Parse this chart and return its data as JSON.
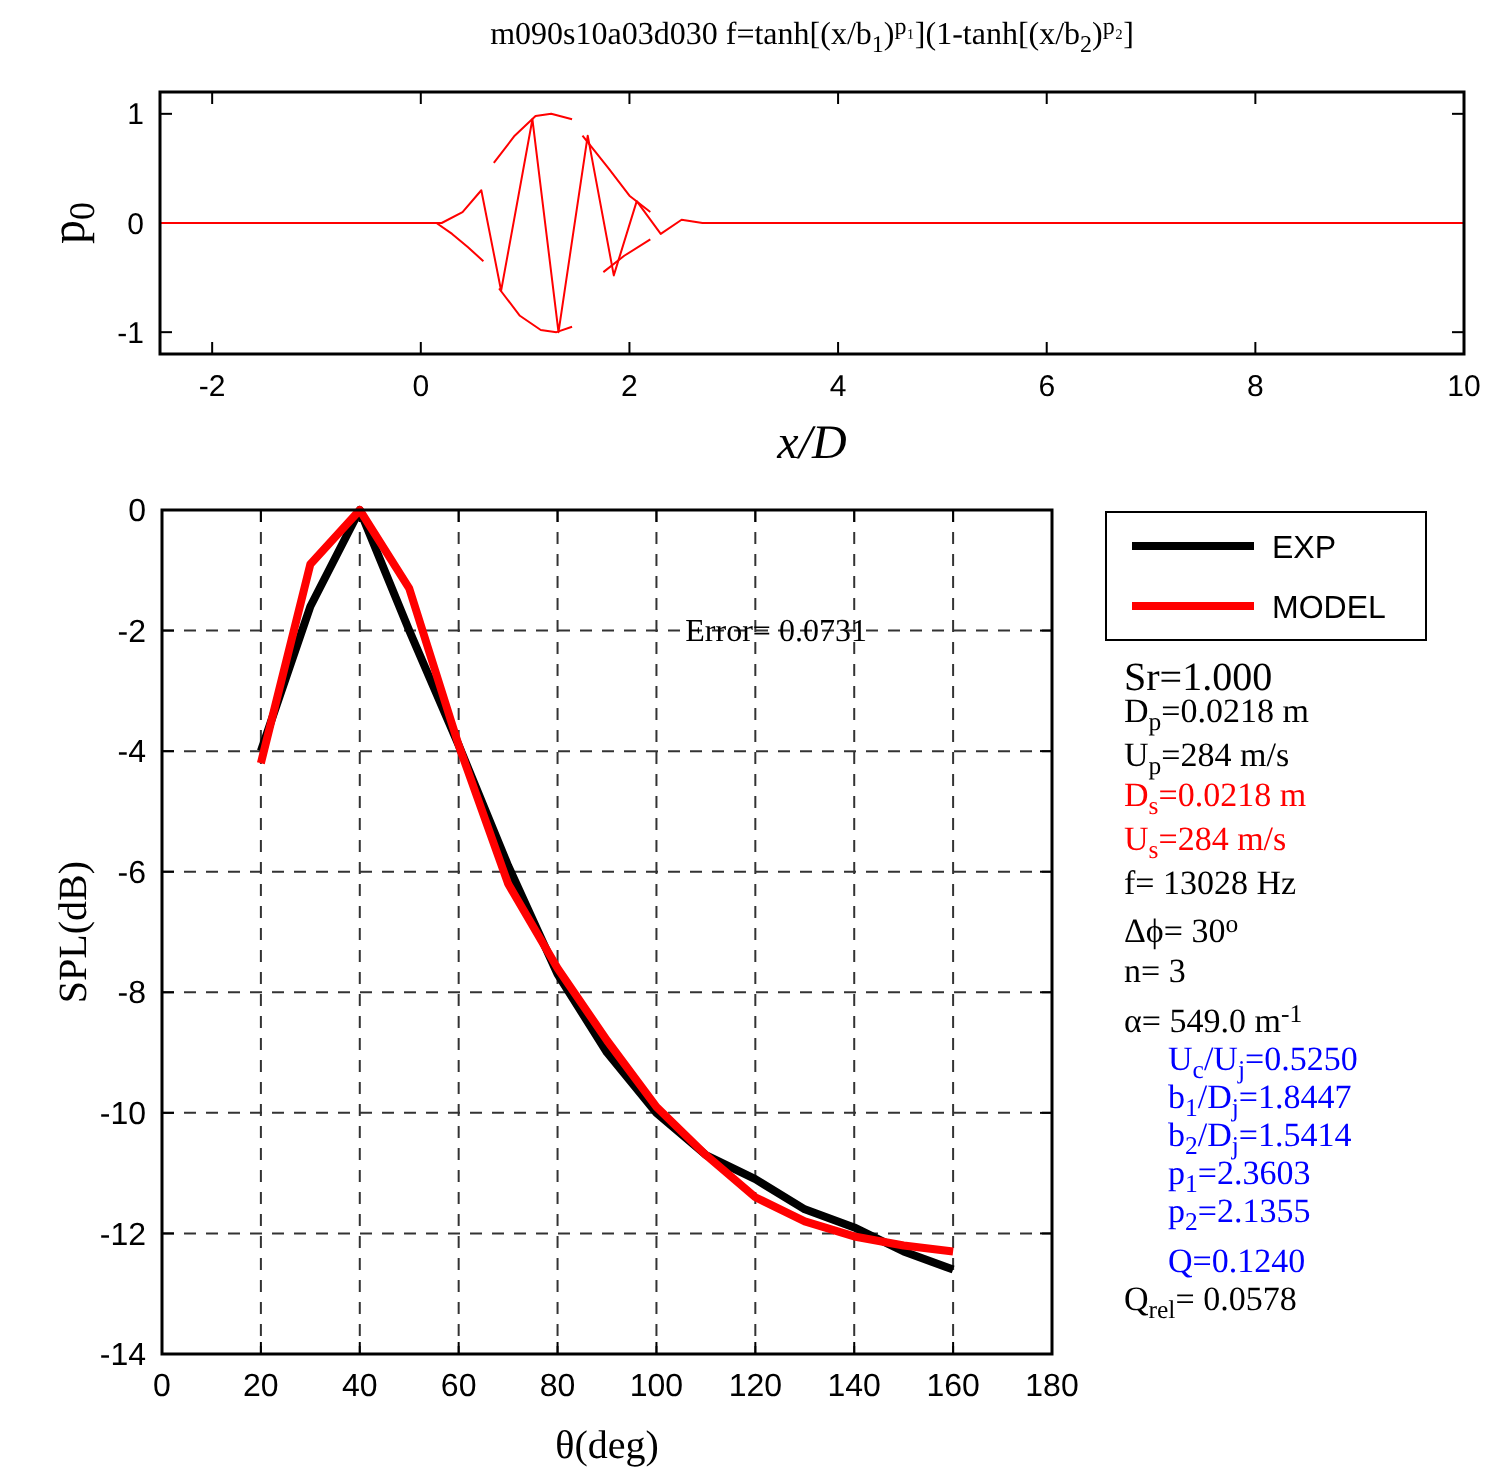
{
  "chart_data": [
    {
      "type": "line",
      "title": "m090s10a03d030  f=tanh[(x/b$_{1}$)$^{p₁}$](1-tanh[(x/b$_{2}$)$^{p₂}$]",
      "xlabel": "x/D",
      "ylabel": "p$_{0}$",
      "xlim": [
        -2.5,
        10
      ],
      "ylim": [
        -1.2,
        1.2
      ],
      "xticks": [
        -2,
        0,
        2,
        4,
        6,
        8,
        10
      ],
      "yticks": [
        -1,
        0,
        1
      ],
      "grid": false,
      "legend": false,
      "series": [
        {
          "color": "#ff0000",
          "x": [
            -2.5,
            0,
            0.2,
            0.4,
            0.58,
            0.77,
            1.07,
            1.32,
            1.6,
            1.85,
            2.07,
            2.3,
            2.5,
            2.7,
            10
          ],
          "values": [
            0,
            0,
            0,
            0.1,
            0.3,
            -0.62,
            0.95,
            -1.0,
            0.8,
            -0.48,
            0.2,
            -0.1,
            0.03,
            0,
            0
          ]
        },
        {
          "color": "#ff0000",
          "x": [
            0.7,
            0.9,
            1.1,
            1.25,
            1.45
          ],
          "values": [
            0.55,
            0.8,
            0.98,
            1.0,
            0.95
          ]
        },
        {
          "color": "#ff0000",
          "x": [
            1.55,
            1.8,
            2.0,
            2.2
          ],
          "values": [
            0.8,
            0.5,
            0.25,
            0.1
          ]
        },
        {
          "color": "#ff0000",
          "x": [
            0.15,
            0.3,
            0.45,
            0.6
          ],
          "values": [
            0,
            -0.1,
            -0.22,
            -0.35
          ]
        },
        {
          "color": "#ff0000",
          "x": [
            0.75,
            0.95,
            1.15,
            1.3,
            1.45
          ],
          "values": [
            -0.6,
            -0.85,
            -0.98,
            -1.0,
            -0.95
          ]
        },
        {
          "color": "#ff0000",
          "x": [
            1.75,
            1.95,
            2.2
          ],
          "values": [
            -0.45,
            -0.3,
            -0.15
          ]
        }
      ]
    },
    {
      "type": "line",
      "xlabel": "θ(deg)",
      "ylabel": "SPL(dB)",
      "xlim": [
        0,
        180
      ],
      "ylim": [
        -14,
        0
      ],
      "xticks": [
        0,
        20,
        40,
        60,
        80,
        100,
        120,
        140,
        160,
        180
      ],
      "yticks": [
        -14,
        -12,
        -10,
        -8,
        -6,
        -4,
        -2,
        0
      ],
      "grid": true,
      "legend": "right",
      "annotations": [
        "Error= 0.0731"
      ],
      "series": [
        {
          "name": "EXP",
          "color": "#000000",
          "x": [
            20,
            30,
            40,
            50,
            60,
            70,
            80,
            90,
            100,
            110,
            120,
            130,
            140,
            150,
            160
          ],
          "values": [
            -4.0,
            -1.6,
            0,
            -2.0,
            -3.9,
            -5.9,
            -7.7,
            -9.0,
            -10.0,
            -10.7,
            -11.1,
            -11.6,
            -11.9,
            -12.3,
            -12.6
          ]
        },
        {
          "name": "MODEL",
          "color": "#ff0000",
          "x": [
            20,
            30,
            40,
            50,
            60,
            70,
            80,
            90,
            100,
            110,
            120,
            130,
            140,
            150,
            160
          ],
          "values": [
            -4.2,
            -0.9,
            0,
            -1.3,
            -3.9,
            -6.2,
            -7.6,
            -8.8,
            -9.9,
            -10.7,
            -11.4,
            -11.8,
            -12.05,
            -12.2,
            -12.3
          ]
        }
      ]
    },
    {
      "type": "other",
      "annotations": [
        "Sr=1.000",
        "D$_{p}$=0.0218 m",
        "U$_{p}$=284 m/s",
        "D$_{s}$=0.0218 m",
        "U$_{s}$=284 m/s",
        "f= 13028 Hz",
        "Δϕ= 30$^{o}$",
        "n= 3",
        "α= 549.0 m$^{-1}$",
        "U$_{c}$/U$_{j}$=0.5250",
        "b$_{1}$/D$_{j}$=1.8447",
        "b$_{2}$/D$_{j}$=1.5414",
        "p$_{1}$=2.3603",
        "p$_{2}$=2.1355",
        "Q=0.1240",
        "Q$_{rel}$= 0.0578"
      ],
      "colors": [
        "#000000",
        "#000000",
        "#000000",
        "#ff0000",
        "#ff0000",
        "#000000",
        "#000000",
        "#000000",
        "#000000",
        "#0000ff",
        "#0000ff",
        "#0000ff",
        "#0000ff",
        "#0000ff",
        "#0000ff",
        "#000000"
      ]
    }
  ]
}
